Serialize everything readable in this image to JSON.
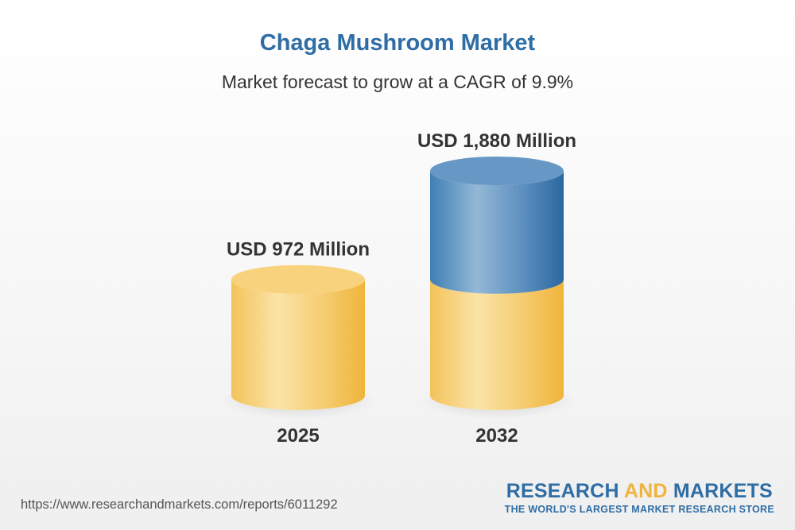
{
  "chart_data": {
    "type": "bar",
    "title": "Chaga Mushroom Market",
    "subtitle": "Market forecast to grow at a CAGR of 9.9%",
    "categories": [
      "2025",
      "2032"
    ],
    "values": [
      972,
      1880
    ],
    "value_labels": [
      "USD 972 Million",
      "USD 1,880 Million"
    ],
    "unit": "USD Million",
    "grid": false,
    "legend": "none"
  },
  "colors": {
    "title": "#2f6da5",
    "base_bar": "#f3c45e",
    "growth_segment": "#3f7fb5",
    "text": "#333333"
  },
  "footer": {
    "source_url": "https://www.researchandmarkets.com/reports/6011292",
    "brand_part1": "RESEARCH ",
    "brand_part2": "AND",
    "brand_part3": " MARKETS",
    "tagline": "THE WORLD'S LARGEST MARKET RESEARCH STORE"
  }
}
